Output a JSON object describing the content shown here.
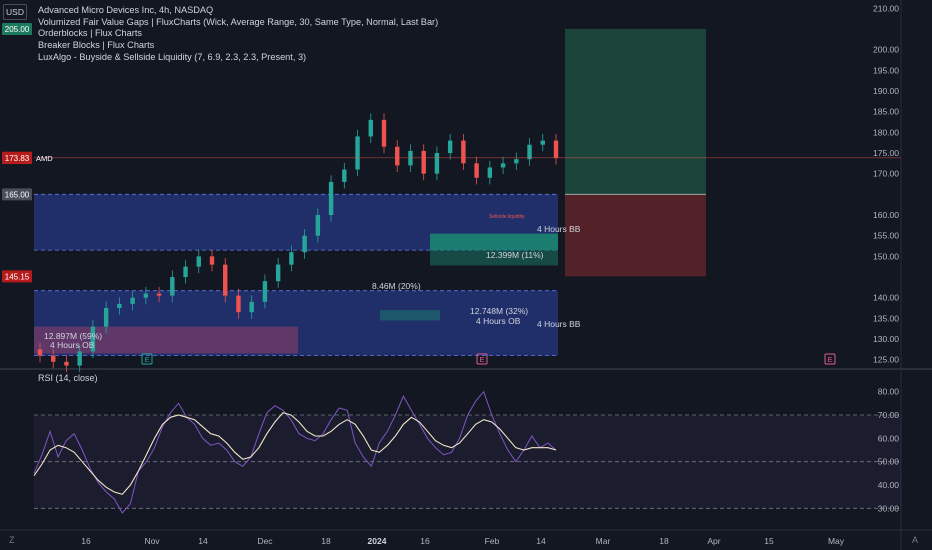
{
  "currency_button": "USD",
  "legend": {
    "title": "Advanced Micro Devices Inc, 4h, NASDAQ",
    "indicators": [
      "Volumized Fair Value Gaps | FluxCharts (Wick, Average Range, 30, Same Type, Normal, Last Bar)",
      "Orderblocks | Flux Charts",
      "Breaker Blocks | Flux Charts",
      "LuxAlgo - Buyside & Sellside Liquidity (7, 6.9, 2.3, 2.3, Present, 3)"
    ]
  },
  "rsi_legend": "RSI (14, close)",
  "colors": {
    "background": "#131722",
    "up": "#26a69a",
    "down": "#ef5350",
    "rsi_line": "#7e57c2",
    "rsi_ma": "#f0e6c8",
    "ob_blue": "#283c91",
    "ob_purple": "#6b3a6a",
    "target_green": "#1d4a3e",
    "stop_red": "#5a2329"
  },
  "chart_data": [
    {
      "type": "candlestick",
      "title": "Advanced Micro Devices Inc, 4h, NASDAQ",
      "ylim": [
        123,
        212
      ],
      "y_ticks": [
        "210.00",
        "200.00",
        "195.00",
        "190.00",
        "185.00",
        "180.00",
        "175.00",
        "170.00",
        "160.00",
        "155.00",
        "150.00",
        "140.00",
        "135.00",
        "130.00",
        "125.00"
      ],
      "x_ticks": [
        "16",
        "Nov",
        "14",
        "Dec",
        "18",
        "2024",
        "16",
        "Feb",
        "14",
        "Mar",
        "18",
        "Apr",
        "15",
        "May"
      ],
      "price_labels": [
        {
          "value": "205.00",
          "color": "#1e7a5e"
        },
        {
          "value": "173.83",
          "color": "#ef5350"
        },
        {
          "value": "173.83",
          "color": "#b71c1c"
        },
        {
          "value": "165.00",
          "color": "#4a4e5a"
        },
        {
          "value": "145.15",
          "color": "#b71c1c"
        }
      ],
      "symbol_tag": "AMD",
      "last_price": 173.83,
      "zones": [
        {
          "kind": "orderblock",
          "y": [
            151.5,
            165.0
          ],
          "color": "blue"
        },
        {
          "kind": "orderblock",
          "y": [
            126.0,
            141.7
          ],
          "color": "blue"
        },
        {
          "kind": "orderblock",
          "y": [
            126.5,
            133.0
          ],
          "color": "purple"
        },
        {
          "kind": "fvg",
          "y": [
            151.5,
            155.5
          ],
          "color": "green"
        },
        {
          "kind": "fvg",
          "y": [
            147.8,
            151.5
          ],
          "color": "green"
        },
        {
          "kind": "fvg",
          "y": [
            134.5,
            137.0
          ],
          "color": "green"
        },
        {
          "kind": "target",
          "y": [
            165.0,
            205.0
          ]
        },
        {
          "kind": "stop",
          "y": [
            145.15,
            165.0
          ]
        }
      ],
      "annotations": [
        "4 Hours BB",
        "12.399M (11%)",
        "8.46M (20%)",
        "12.748M (32%)",
        "4 Hours OB",
        "4 Hours BB",
        "12.897M (59%)",
        "4 Hours OB",
        "Sellside liquidity"
      ],
      "event_markers": [
        "E",
        "E",
        "E"
      ],
      "closes": [
        126,
        124.5,
        123.6,
        127,
        133,
        137.5,
        138.5,
        140,
        141,
        140.5,
        145,
        147.5,
        150,
        148,
        140.5,
        136.5,
        139,
        144,
        148,
        151,
        155,
        160,
        168,
        171,
        179,
        183,
        176.5,
        172,
        175.5,
        170,
        175,
        178,
        172.5,
        169,
        171.5,
        172.5,
        173.5,
        177,
        178,
        173.83
      ]
    },
    {
      "type": "line",
      "title": "RSI (14, close)",
      "ylim": [
        25,
        85
      ],
      "y_ticks": [
        "80.00",
        "70.00",
        "60.00",
        "50.00",
        "40.00",
        "30.00"
      ],
      "levels": [
        70,
        50,
        30
      ],
      "series": [
        {
          "name": "RSI",
          "values": [
            45,
            53,
            63,
            52,
            59,
            62,
            55,
            47,
            41,
            37,
            34,
            28,
            32,
            46,
            50,
            56,
            65,
            71,
            75,
            69,
            66,
            60,
            57,
            58,
            55,
            50,
            48,
            52,
            62,
            71,
            74,
            72,
            68,
            62,
            60,
            59,
            62,
            68,
            73,
            72,
            58,
            52,
            48,
            58,
            63,
            70,
            78,
            72,
            66,
            60,
            56,
            53,
            54,
            60,
            70,
            76,
            80,
            70,
            62,
            55,
            50,
            55,
            61,
            56,
            58,
            55
          ]
        },
        {
          "name": "RSI MA",
          "values": [
            44,
            49,
            55,
            57,
            56,
            54,
            50,
            46,
            42,
            39,
            37,
            36,
            40,
            46,
            53,
            60,
            66,
            69,
            70,
            69,
            68,
            65,
            62,
            61,
            58,
            54,
            51,
            52,
            56,
            62,
            67,
            71,
            70,
            67,
            63,
            61,
            61,
            63,
            66,
            68,
            66,
            61,
            55,
            54,
            57,
            61,
            66,
            69,
            67,
            63,
            59,
            57,
            56,
            58,
            62,
            66,
            68,
            67,
            64,
            60,
            56,
            55,
            56,
            56,
            56,
            55
          ]
        }
      ]
    }
  ],
  "corner_icons": {
    "zoom_out": "Z",
    "zoom_in": "A"
  }
}
